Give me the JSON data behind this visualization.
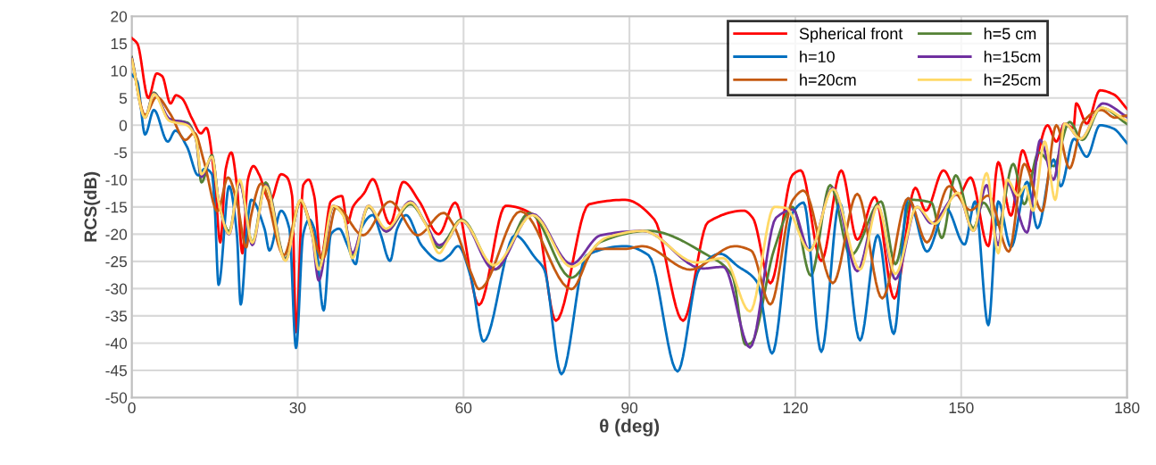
{
  "chart_data": {
    "type": "line",
    "xlabel": "θ (deg)",
    "ylabel": "RCS(dB)",
    "xlim": [
      0,
      180
    ],
    "xticks": [
      0,
      30,
      60,
      90,
      120,
      150,
      180
    ],
    "ylim": [
      -50,
      20
    ],
    "yticks": [
      -50,
      -45,
      -40,
      -35,
      -30,
      -25,
      -20,
      -15,
      -10,
      -5,
      0,
      5,
      10,
      15,
      20
    ],
    "grid": true,
    "legend": "top right",
    "marker": "none",
    "line_style": "solid",
    "series": [
      {
        "name": "Spherical front",
        "color": "#ff0000",
        "x": [
          0,
          1,
          3,
          4.5,
          5.5,
          7,
          8,
          9,
          11,
          12.5,
          13.5,
          15,
          16,
          17,
          18,
          19,
          20,
          21,
          22,
          23,
          25,
          27,
          28,
          29,
          29.7,
          31,
          32,
          33,
          34.2,
          36,
          38,
          39,
          40,
          42,
          43.6,
          46.7,
          49.1,
          52,
          55.5,
          58.5,
          62.8,
          67.6,
          73,
          76.7,
          82.7,
          89.2,
          94.5,
          99.7,
          104.2,
          110.7,
          112.3,
          115.5,
          119.5,
          121,
          124.7,
          128.3,
          131.2,
          134.4,
          137.9,
          141.7,
          143.6,
          146.8,
          149.5,
          151.7,
          154.9,
          156.7,
          159,
          161.1,
          162.7,
          165.6,
          167.2,
          168.7,
          170.3,
          170.8,
          172.7,
          175.1,
          177.5,
          180
        ],
        "values": [
          16,
          15,
          5,
          9.5,
          9,
          4,
          5.5,
          5,
          1,
          -1.5,
          -0.5,
          -10,
          -21.5,
          -8,
          -5,
          -11,
          -23.5,
          -10,
          -7.5,
          -9,
          -14,
          -9,
          -9.5,
          -13,
          -38,
          -11,
          -10,
          -13,
          -24.4,
          -14,
          -13,
          -18,
          -15,
          -12.5,
          -9.9,
          -18.1,
          -10.4,
          -14,
          -20,
          -14.2,
          -33,
          -14.8,
          -16.7,
          -35.9,
          -14.5,
          -13.7,
          -17.3,
          -35.9,
          -17.8,
          -15.7,
          -17,
          -29,
          -9.1,
          -8.3,
          -24.9,
          -8.3,
          -21,
          -13.2,
          -31.8,
          -11.5,
          -15.7,
          -8.3,
          -12.9,
          -9.6,
          -22.2,
          -6.8,
          -16.6,
          -4.6,
          -8.5,
          0,
          -3,
          0.3,
          -0.5,
          4,
          0.3,
          6.4,
          5.7,
          3
        ]
      },
      {
        "name": "h=5 cm",
        "color": "#548235",
        "x": [
          0,
          2.4,
          4,
          6.8,
          10,
          11.6,
          12.6,
          14.5,
          15.8,
          17.6,
          19.5,
          21.8,
          24.2,
          27.8,
          30.5,
          32.6,
          33.8,
          36.4,
          38.3,
          39.9,
          42.8,
          46,
          50.4,
          53.1,
          55.6,
          56.9,
          59.6,
          65.8,
          71.9,
          79.5,
          84.8,
          93.5,
          104.2,
          108.6,
          111,
          112,
          116.2,
          119.5,
          122.8,
          126.3,
          130,
          135.5,
          138.1,
          140.9,
          144.6,
          146.5,
          149,
          152.2,
          154,
          156.7,
          159.4,
          161.4,
          164,
          166.7,
          169.6,
          171.9,
          175.3,
          180
        ],
        "values": [
          12.5,
          1.5,
          6,
          1,
          0.5,
          -2.5,
          -10.5,
          -5.5,
          -14.5,
          -19.5,
          -10.5,
          -21.5,
          -10.5,
          -24.5,
          -14,
          -20,
          -26,
          -15,
          -16.5,
          -24,
          -15,
          -19.5,
          -14.5,
          -18,
          -22.5,
          -21,
          -17.3,
          -26.5,
          -16.1,
          -28,
          -21.4,
          -19.4,
          -23.9,
          -27.6,
          -40.3,
          -40,
          -22.7,
          -15,
          -27.6,
          -11,
          -23.9,
          -14,
          -25.5,
          -13.7,
          -14.2,
          -20.7,
          -9.2,
          -18.9,
          -14.2,
          -18.3,
          -7.1,
          -14.5,
          -5,
          -7.5,
          0.6,
          -2.7,
          3.2,
          0.2
        ]
      },
      {
        "name": "h=10",
        "color": "#0070c0",
        "x": [
          0,
          1,
          2.4,
          4,
          6.5,
          7.9,
          10,
          12,
          13.2,
          14.5,
          15,
          15.7,
          17.6,
          19,
          19.7,
          21,
          21.6,
          24,
          24.9,
          27,
          28.5,
          29.7,
          31,
          32.1,
          33,
          34.7,
          36,
          37.5,
          39,
          40.5,
          41.5,
          43.6,
          45,
          46.7,
          48,
          49.6,
          52.5,
          55.8,
          57.4,
          59,
          61.4,
          63.6,
          69.3,
          73,
          74.6,
          77.7,
          82.2,
          89.2,
          93.5,
          98.7,
          102.6,
          106.4,
          109.5,
          113.1,
          115.8,
          119.5,
          121.5,
          124.7,
          128,
          131.7,
          134.9,
          137.8,
          140.4,
          143.8,
          147.3,
          150.6,
          152.5,
          154.9,
          156.7,
          159,
          161.9,
          163.8,
          166.7,
          168,
          170.4,
          172.7,
          175.1,
          177.5,
          180
        ],
        "values": [
          9.3,
          8,
          -1.7,
          2.8,
          -3,
          -1,
          -4,
          -9.2,
          -8,
          -9,
          -15,
          -29.3,
          -11.2,
          -20,
          -32.9,
          -17,
          -13.7,
          -19,
          -23,
          -15.7,
          -19,
          -40.9,
          -20,
          -17.3,
          -19,
          -34,
          -20,
          -19,
          -22,
          -25.5,
          -19,
          -16.5,
          -20,
          -24.9,
          -19,
          -16.5,
          -22.2,
          -24.9,
          -23.9,
          -22.2,
          -28.2,
          -39.7,
          -20.2,
          -24.4,
          -26.5,
          -45.7,
          -23.9,
          -22.2,
          -23.9,
          -45.2,
          -26.5,
          -23.6,
          -25.8,
          -28.8,
          -41.9,
          -16.1,
          -14.2,
          -41.6,
          -14.2,
          -39.5,
          -20.2,
          -38.3,
          -13.4,
          -23.2,
          -15.3,
          -21.9,
          -14,
          -36.7,
          -14,
          -22.4,
          -10.4,
          -18.9,
          -6.3,
          -11.2,
          -2.5,
          -5.8,
          0,
          -0.6,
          -3.3
        ]
      },
      {
        "name": "h=15cm",
        "color": "#7030a0",
        "x": [
          0,
          2.4,
          4,
          6.8,
          10,
          11.6,
          12.6,
          14.5,
          15.8,
          17.6,
          19.5,
          21.8,
          24.2,
          27.8,
          30.5,
          32.6,
          33.8,
          36.4,
          38.3,
          39.9,
          42.8,
          46,
          50.4,
          53.1,
          55.6,
          56.9,
          59.6,
          65.5,
          72.5,
          79.5,
          84.8,
          92.4,
          103.2,
          107,
          111.8,
          116.5,
          119.5,
          122.6,
          126.8,
          131.2,
          134.9,
          138.1,
          142,
          144.6,
          149.4,
          152.2,
          154.6,
          156.7,
          158.3,
          161.9,
          164.3,
          166.7,
          168.7,
          171.6,
          175.6,
          180
        ],
        "values": [
          12.3,
          1.4,
          5.8,
          1.2,
          0.3,
          -2.5,
          -9.5,
          -5.8,
          -14.5,
          -20,
          -10.5,
          -22,
          -11,
          -24.8,
          -13.8,
          -20,
          -28.5,
          -14.8,
          -16.5,
          -23.5,
          -14.8,
          -19.5,
          -14,
          -18,
          -22,
          -21.3,
          -17.5,
          -26.5,
          -16.3,
          -25.5,
          -20.2,
          -19.4,
          -26.3,
          -26,
          -40.8,
          -17,
          -15.5,
          -23,
          -11.5,
          -26.8,
          -14.8,
          -28.3,
          -15,
          -18,
          -12.6,
          -19.4,
          -11,
          -22,
          -10.5,
          -19.7,
          -2.7,
          -10,
          0.3,
          -2.5,
          4,
          1.5
        ]
      },
      {
        "name": "h=20cm",
        "color": "#c55a11",
        "x": [
          0,
          2.4,
          4.5,
          7,
          9.7,
          11.3,
          13.1,
          15.5,
          17.4,
          19,
          20.7,
          21.5,
          23.4,
          27.5,
          30.5,
          34.6,
          37,
          41.8,
          46.7,
          51.7,
          56.4,
          58,
          61.4,
          62.8,
          70.3,
          79.5,
          83.8,
          89.2,
          92.4,
          101,
          109,
          112,
          115.5,
          119.5,
          121.5,
          126.8,
          131.2,
          135.7,
          140.4,
          143.8,
          147.8,
          151.7,
          154.9,
          158.6,
          161.4,
          164.6,
          167.2,
          169.6,
          172,
          175.3,
          177.8,
          180
        ],
        "values": [
          12.1,
          1.9,
          5.2,
          2,
          -2.7,
          -1.4,
          -6.8,
          -15.8,
          -9.6,
          -14,
          -22.4,
          -17,
          -10.7,
          -23.9,
          -14,
          -24.4,
          -15,
          -20.2,
          -14,
          -20.2,
          -16.1,
          -18,
          -27.2,
          -30.1,
          -15.8,
          -30.1,
          -22.7,
          -22.7,
          -22.2,
          -26.5,
          -22.2,
          -23,
          -32.9,
          -13.8,
          -12,
          -29,
          -12.6,
          -31.8,
          -13.4,
          -21.5,
          -11.2,
          -15.6,
          -12.9,
          -23.2,
          -7.1,
          -15.8,
          0,
          -7.9,
          0.6,
          2.8,
          1.4,
          1.8
        ]
      },
      {
        "name": "h=25cm",
        "color": "#ffd966",
        "x": [
          0,
          2.4,
          4,
          6.8,
          10,
          11.6,
          12.6,
          14.5,
          15.8,
          17.6,
          19.5,
          21.8,
          24.2,
          27.8,
          30.5,
          32.6,
          33.8,
          36.4,
          38.3,
          39.9,
          42.8,
          46,
          50.4,
          53.1,
          55.6,
          56.9,
          59.6,
          65.5,
          72.5,
          79.5,
          85.9,
          92.4,
          102.1,
          107,
          111.8,
          116.2,
          118.3,
          122.6,
          126.8,
          131.7,
          134.9,
          138.1,
          142,
          145.2,
          149.4,
          152.2,
          154.6,
          156.7,
          158.3,
          160.3,
          161.6,
          163,
          165.1,
          167,
          168.7,
          171.6,
          175.3,
          180
        ],
        "values": [
          12.1,
          1.4,
          5.7,
          0.8,
          0,
          -2.5,
          -9,
          -5.8,
          -14.5,
          -19.9,
          -10,
          -21.6,
          -11.2,
          -24.9,
          -13.7,
          -20,
          -26.5,
          -14.8,
          -16.7,
          -24.4,
          -14.8,
          -19,
          -14.2,
          -18.1,
          -23.5,
          -21.6,
          -17.5,
          -25.7,
          -16.5,
          -26,
          -20.6,
          -19.4,
          -25.2,
          -24.4,
          -34.2,
          -15,
          -15.2,
          -23,
          -11.7,
          -26.5,
          -14.8,
          -27.3,
          -15,
          -18.1,
          -12.4,
          -19.4,
          -8.8,
          -23.5,
          -10,
          -12.9,
          -11.2,
          -15.7,
          -3,
          -13.7,
          0.3,
          -2.5,
          3.2,
          0.8
        ]
      }
    ]
  }
}
